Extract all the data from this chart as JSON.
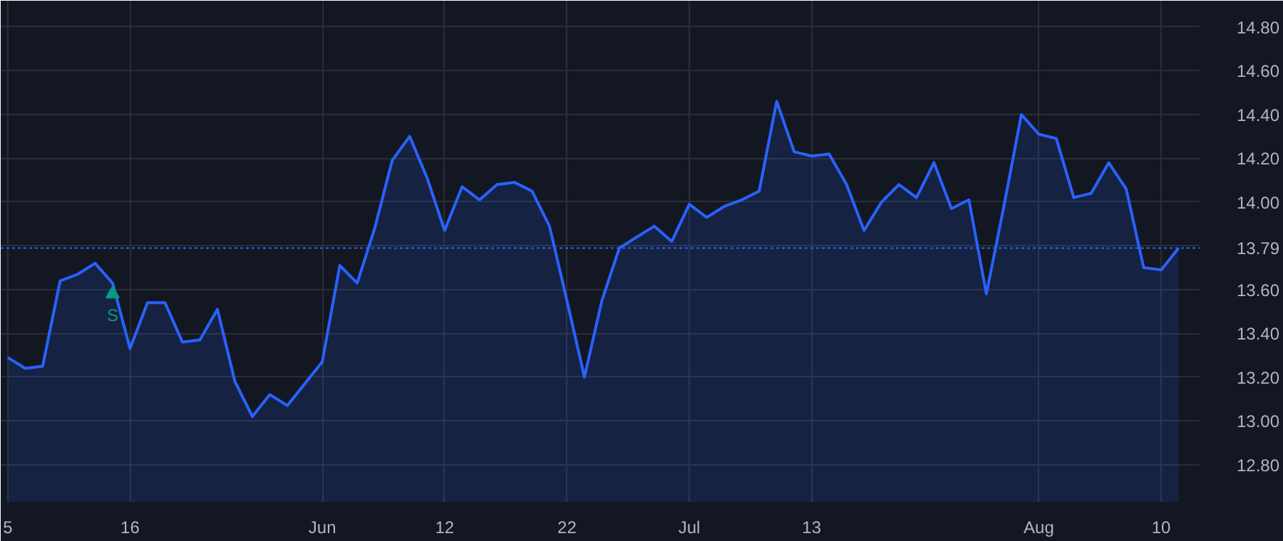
{
  "chart_data": {
    "type": "area",
    "categories": [
      "5",
      null,
      null,
      null,
      null,
      null,
      null,
      "16",
      null,
      null,
      null,
      null,
      null,
      null,
      null,
      null,
      null,
      null,
      "Jun",
      null,
      null,
      null,
      null,
      null,
      null,
      "12",
      null,
      null,
      null,
      null,
      null,
      null,
      "22",
      null,
      null,
      null,
      null,
      null,
      null,
      "Jul",
      null,
      null,
      null,
      null,
      null,
      null,
      "13",
      null,
      null,
      null,
      null,
      null,
      null,
      null,
      null,
      null,
      null,
      null,
      null,
      "Aug",
      null,
      null,
      null,
      null,
      null,
      null,
      "10",
      null
    ],
    "series": [
      {
        "color": "#2962ff",
        "values": [
          13.29,
          13.24,
          13.25,
          13.64,
          13.67,
          13.72,
          13.63,
          13.33,
          13.54,
          13.54,
          13.36,
          13.37,
          13.51,
          13.18,
          13.02,
          13.12,
          13.07,
          13.17,
          13.27,
          13.71,
          13.63,
          13.88,
          14.19,
          14.3,
          14.11,
          13.87,
          14.07,
          14.01,
          14.08,
          14.09,
          14.05,
          13.89,
          13.55,
          13.2,
          13.55,
          13.79,
          13.84,
          13.89,
          13.82,
          13.99,
          13.93,
          13.98,
          14.01,
          14.05,
          14.46,
          14.23,
          14.21,
          14.22,
          14.08,
          13.87,
          14.0,
          14.08,
          14.02,
          14.18,
          13.97,
          14.01,
          13.58,
          13.98,
          14.4,
          14.31,
          14.29,
          14.02,
          14.04,
          14.18,
          14.06,
          13.7,
          13.69,
          13.79
        ]
      },
      {
        "type": "scatter",
        "name": "S",
        "color": "#089981",
        "marker": "triangle",
        "values": [
          null,
          null,
          null,
          null,
          null,
          null,
          13.58,
          null,
          null,
          null,
          null,
          null,
          null,
          null,
          null,
          null,
          null,
          null,
          null,
          null,
          null,
          null,
          null,
          null,
          null,
          null,
          null,
          null,
          null,
          null,
          null,
          null,
          null,
          null,
          null,
          null,
          null,
          null,
          null,
          null,
          null,
          null,
          null,
          null,
          null,
          null,
          null,
          null,
          null,
          null,
          null,
          null,
          null,
          null,
          null,
          null,
          null,
          null,
          null,
          null,
          null,
          null,
          null,
          null,
          null,
          null,
          null,
          null
        ]
      }
    ],
    "ylim": [
      12.63,
      14.92
    ],
    "yticks": [
      {
        "value": 12.8,
        "label": "12.80"
      },
      {
        "value": 13.0,
        "label": "13.00"
      },
      {
        "value": 13.2,
        "label": "13.20"
      },
      {
        "value": 13.4,
        "label": "13.40"
      },
      {
        "value": 13.6,
        "label": "13.60"
      },
      {
        "value": 13.8,
        "label": null
      },
      {
        "value": 14.0,
        "label": "14.00"
      },
      {
        "value": 14.2,
        "label": "14.20"
      },
      {
        "value": 14.4,
        "label": "14.40"
      },
      {
        "value": 14.6,
        "label": "14.60"
      },
      {
        "value": 14.8,
        "label": "14.80"
      }
    ],
    "ref_lines": [
      {
        "axis": "y",
        "value": 13.79,
        "label": "13.79",
        "color": "#2962ff",
        "line_style": "dotted"
      }
    ],
    "grid": true,
    "legend": false
  }
}
